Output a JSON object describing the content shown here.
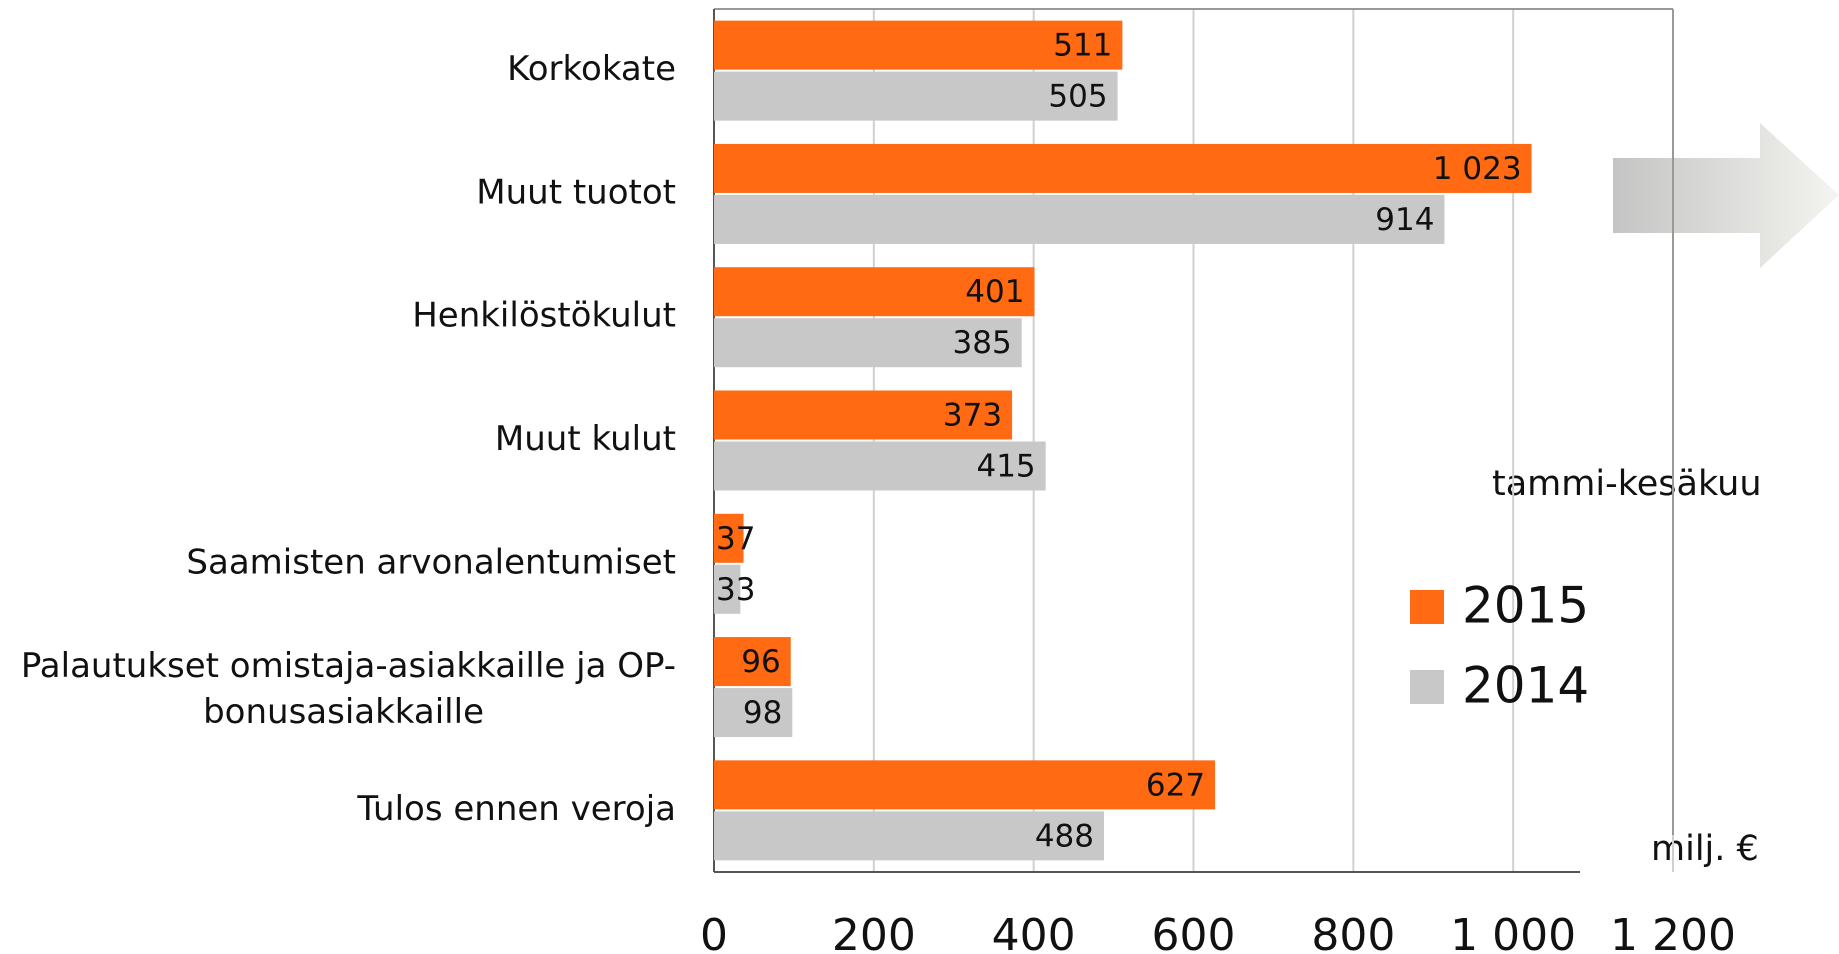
{
  "chart_data": {
    "type": "barh",
    "categories": [
      "Korkokate",
      "Muut tuotot",
      "Henkilöstökulut",
      "Muut kulut",
      "Saamisten arvonalentumiset",
      "Palautukset omistaja-asiakkaille ja OP-\nbonusasiakkaille",
      "Tulos ennen veroja"
    ],
    "series": [
      {
        "name": "2015",
        "color": "#ff6a13",
        "values": [
          511,
          1023,
          401,
          373,
          37,
          96,
          627
        ],
        "value_labels": [
          "511",
          "1 023",
          "401",
          "373",
          "37",
          "96",
          "627"
        ]
      },
      {
        "name": "2014",
        "color": "#c8c8c8",
        "values": [
          505,
          914,
          385,
          415,
          33,
          98,
          488
        ],
        "value_labels": [
          "505",
          "914",
          "385",
          "415",
          "33",
          "98",
          "488"
        ]
      }
    ],
    "xlim": [
      0,
      1200
    ],
    "xticks": [
      0,
      200,
      400,
      600,
      800,
      {
        "value": 1000,
        "label": "1 000"
      },
      {
        "value": 1200,
        "label": "1 200"
      }
    ],
    "grid": true,
    "legend_title": "tammi-kesäkuu",
    "unit_label": "milj. €"
  }
}
